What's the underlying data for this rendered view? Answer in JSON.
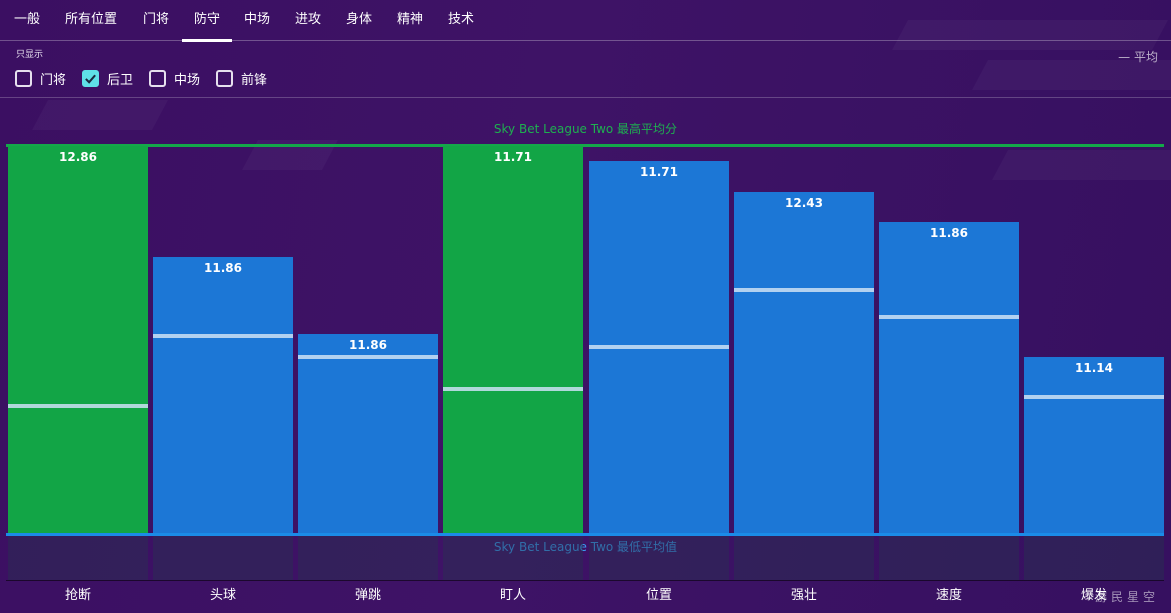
{
  "tabs": [
    {
      "label": "一般",
      "active": false
    },
    {
      "label": "所有位置",
      "active": false
    },
    {
      "label": "门将",
      "active": false
    },
    {
      "label": "防守",
      "active": true
    },
    {
      "label": "中场",
      "active": false
    },
    {
      "label": "进攻",
      "active": false
    },
    {
      "label": "身体",
      "active": false
    },
    {
      "label": "精神",
      "active": false
    },
    {
      "label": "技术",
      "active": false
    }
  ],
  "filter": {
    "title": "只显示",
    "options": [
      {
        "label": "门将",
        "checked": false
      },
      {
        "label": "后卫",
        "checked": true
      },
      {
        "label": "中场",
        "checked": false
      },
      {
        "label": "前锋",
        "checked": false
      }
    ]
  },
  "legend": {
    "label": "— 平均"
  },
  "reference": {
    "top_label": "Sky Bet League Two 最高平均分",
    "bottom_label": "Sky Bet League Two 最低平均值"
  },
  "colors": {
    "highlight_bar": "#12a546",
    "normal_bar": "#1c77d6",
    "top_line": "#14a84a",
    "bottom_line": "#1b8be8"
  },
  "chart_data": {
    "type": "bar",
    "categories": [
      "抢断",
      "头球",
      "弹跳",
      "盯人",
      "位置",
      "强壮",
      "速度",
      "爆发"
    ],
    "values": [
      12.86,
      11.86,
      11.86,
      11.71,
      11.71,
      12.43,
      11.86,
      11.14
    ],
    "highlight": [
      true,
      false,
      false,
      true,
      false,
      false,
      false,
      false
    ],
    "bar_fraction": [
      1.0,
      0.714,
      0.513,
      1.0,
      0.961,
      0.881,
      0.804,
      0.454
    ],
    "average_fraction": [
      0.334,
      0.513,
      0.461,
      0.376,
      0.485,
      0.632,
      0.563,
      0.356
    ]
  },
  "watermark": "游民星空"
}
